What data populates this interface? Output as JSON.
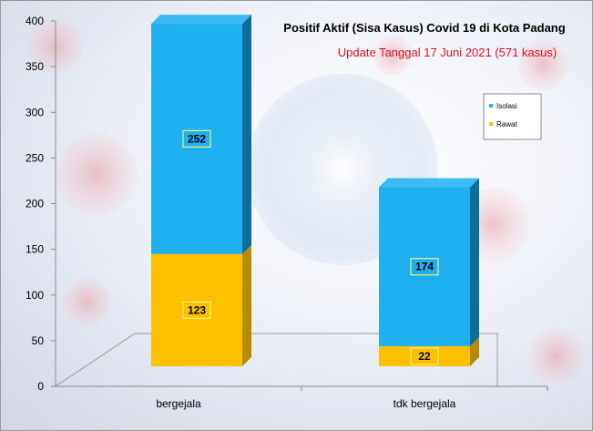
{
  "chart_data": {
    "type": "bar",
    "stacked": true,
    "title": "Positif Aktif  (Sisa Kasus) Covid 19 di Kota Padang",
    "subtitle": "Update Tanggal 17 Juni 2021  (571 kasus)",
    "categories": [
      "bergejala",
      "tdk bergejala"
    ],
    "series": [
      {
        "name": "Rawat",
        "values": [
          123,
          22
        ],
        "color": "#ffc000",
        "side_color": "#b88a00"
      },
      {
        "name": "Isolasi",
        "values": [
          252,
          174
        ],
        "color": "#1fb0f0",
        "side_color": "#0b6d98"
      }
    ],
    "ylim": [
      0,
      400
    ],
    "yticks": [
      "0",
      "50",
      "100",
      "150",
      "200",
      "250",
      "300",
      "350",
      "400"
    ],
    "legend_position": "right",
    "grid": false
  }
}
